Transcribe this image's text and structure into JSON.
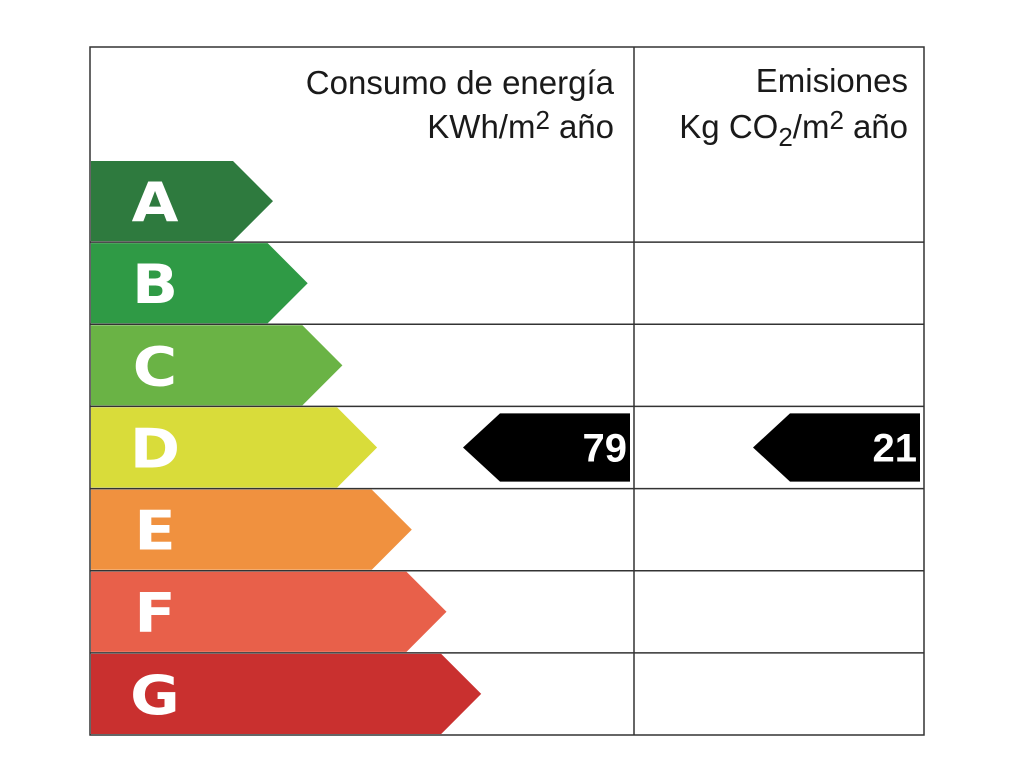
{
  "header": {
    "consumo": {
      "line1": "Consumo de energía",
      "line2": [
        "KWh/m",
        "2",
        "año"
      ]
    },
    "emisiones": {
      "line1": "Emisiones",
      "line2": [
        "Kg CO",
        "2",
        "/m",
        "2",
        "año"
      ]
    }
  },
  "ratings": [
    {
      "letter": "A",
      "color": "#2e7a3e"
    },
    {
      "letter": "B",
      "color": "#2f9a45"
    },
    {
      "letter": "C",
      "color": "#6ab345"
    },
    {
      "letter": "D",
      "color": "#d9dc3a",
      "consumo": 79,
      "emisiones": 21
    },
    {
      "letter": "E",
      "color": "#f0913f"
    },
    {
      "letter": "F",
      "color": "#e8604a"
    },
    {
      "letter": "G",
      "color": "#c9302f"
    }
  ]
}
